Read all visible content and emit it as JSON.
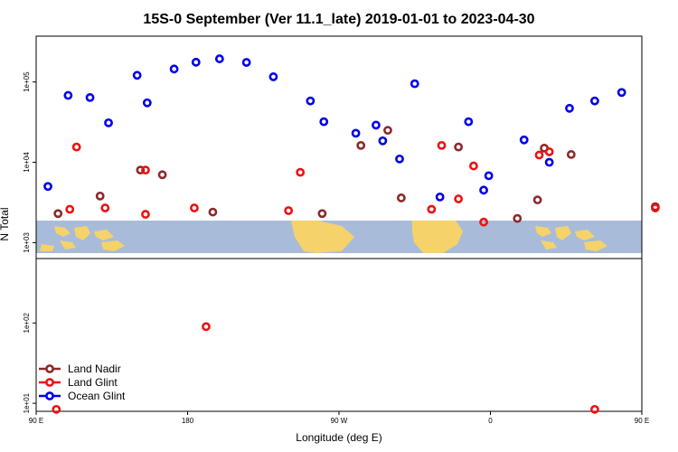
{
  "chart_data": {
    "type": "scatter",
    "title": "15S-0 September (Ver 11.1_late)   2019-01-01 to 2023-04-30",
    "xlabel": "Longitude (deg E)",
    "ylabel": "N Total",
    "x_scale": "longitude from 90 E eastward, wrapping through 180 to 180",
    "y_scale": "log",
    "xlim": [
      90,
      450
    ],
    "ylim_log10": [
      0.9,
      5.57
    ],
    "x_ticks": [
      {
        "value": 90,
        "label": "90 E"
      },
      {
        "value": 180,
        "label": "180"
      },
      {
        "value": 270,
        "label": "90 W"
      },
      {
        "value": 360,
        "label": "0"
      },
      {
        "value": 450,
        "label": "90 E"
      },
      {
        "value": 540,
        "label": "180"
      }
    ],
    "y_ticks": [
      {
        "value": 10,
        "label": "1e+01"
      },
      {
        "value": 100,
        "label": "1e+02"
      },
      {
        "value": 1000,
        "label": "1e+03"
      },
      {
        "value": 10000,
        "label": "1e+04"
      },
      {
        "value": 100000,
        "label": "1e+05"
      }
    ],
    "map_background": "equatorial world map strip (land yellow, ocean light blue) spanning the longitude range",
    "legend_position": "bottom-left",
    "series": [
      {
        "name": "Land Nadir",
        "color": "#8b2a2a",
        "points": [
          {
            "x": 103,
            "y": 2300
          },
          {
            "x": 128,
            "y": 3800
          },
          {
            "x": 152,
            "y": 8000
          },
          {
            "x": 165,
            "y": 7000
          },
          {
            "x": 195,
            "y": 2400
          },
          {
            "x": 260,
            "y": 2300
          },
          {
            "x": 283,
            "y": 16200
          },
          {
            "x": 299,
            "y": 25000
          },
          {
            "x": 307,
            "y": 3600
          },
          {
            "x": 341,
            "y": 15500
          },
          {
            "x": 376,
            "y": 2000
          },
          {
            "x": 388,
            "y": 3400
          },
          {
            "x": 392,
            "y": 15000
          },
          {
            "x": 408,
            "y": 12500
          },
          {
            "x": 458,
            "y": 2800
          }
        ]
      },
      {
        "name": "Land Glint",
        "color": "#ee1111",
        "points": [
          {
            "x": 102,
            "y": 8.4
          },
          {
            "x": 110,
            "y": 2600
          },
          {
            "x": 114,
            "y": 15500
          },
          {
            "x": 131,
            "y": 2700
          },
          {
            "x": 155,
            "y": 2250
          },
          {
            "x": 155,
            "y": 8000
          },
          {
            "x": 184,
            "y": 2700
          },
          {
            "x": 191,
            "y": 90
          },
          {
            "x": 240,
            "y": 2500
          },
          {
            "x": 247,
            "y": 7500
          },
          {
            "x": 331,
            "y": 16200
          },
          {
            "x": 325,
            "y": 2600
          },
          {
            "x": 341,
            "y": 3500
          },
          {
            "x": 350,
            "y": 9000
          },
          {
            "x": 356,
            "y": 1800
          },
          {
            "x": 389,
            "y": 12300
          },
          {
            "x": 395,
            "y": 13500
          },
          {
            "x": 422,
            "y": 8.4
          },
          {
            "x": 458,
            "y": 2700
          }
        ]
      },
      {
        "name": "Ocean Glint",
        "color": "#0000ee",
        "points": [
          {
            "x": 97,
            "y": 5000
          },
          {
            "x": 109,
            "y": 68000
          },
          {
            "x": 122,
            "y": 64000
          },
          {
            "x": 133,
            "y": 31000
          },
          {
            "x": 150,
            "y": 121000
          },
          {
            "x": 156,
            "y": 55000
          },
          {
            "x": 172,
            "y": 145000
          },
          {
            "x": 185,
            "y": 176000
          },
          {
            "x": 199,
            "y": 194000
          },
          {
            "x": 215,
            "y": 175000
          },
          {
            "x": 231,
            "y": 116000
          },
          {
            "x": 253,
            "y": 58000
          },
          {
            "x": 261,
            "y": 32000
          },
          {
            "x": 280,
            "y": 23000
          },
          {
            "x": 292,
            "y": 29000
          },
          {
            "x": 296,
            "y": 18500
          },
          {
            "x": 306,
            "y": 11000
          },
          {
            "x": 315,
            "y": 95000
          },
          {
            "x": 330,
            "y": 3700
          },
          {
            "x": 347,
            "y": 32000
          },
          {
            "x": 356,
            "y": 4500
          },
          {
            "x": 359,
            "y": 6800
          },
          {
            "x": 380,
            "y": 19000
          },
          {
            "x": 395,
            "y": 10000
          },
          {
            "x": 407,
            "y": 47000
          },
          {
            "x": 422,
            "y": 58000
          },
          {
            "x": 438,
            "y": 74000
          }
        ]
      }
    ]
  }
}
